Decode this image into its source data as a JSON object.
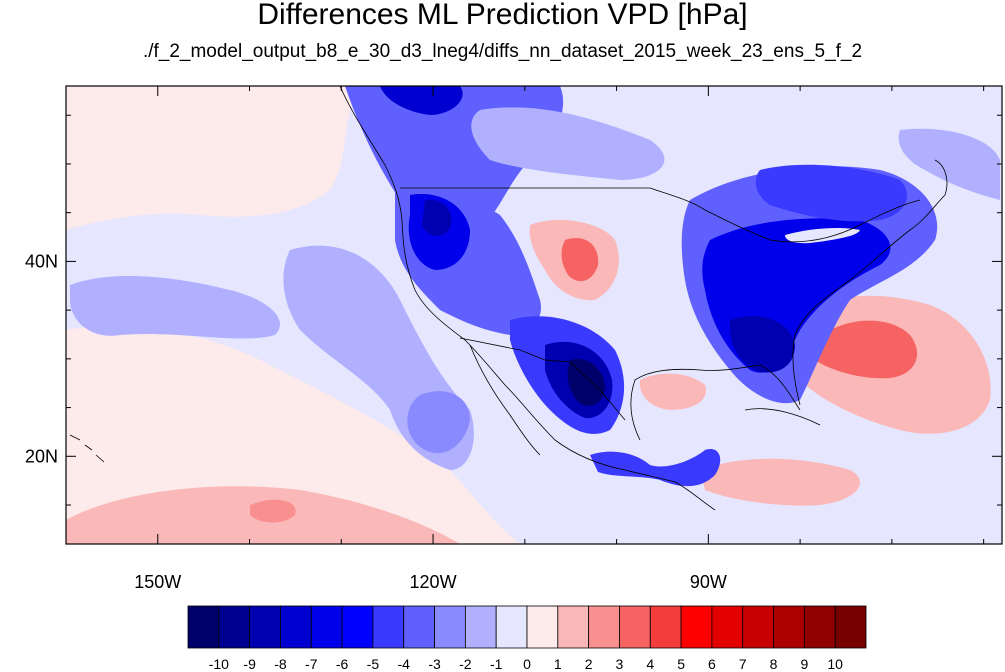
{
  "title": "Differences ML Prediction VPD [hPa]",
  "subtitle": "./f_2_model_output_b8_e_30_d3_lneg4/diffs_nn_dataset_2015_week_23_ens_5_f_2",
  "map": {
    "lon_range": [
      -160,
      -58
    ],
    "lat_range": [
      11,
      58
    ],
    "x_ticks": [
      {
        "lon": -150,
        "label": "150W"
      },
      {
        "lon": -120,
        "label": "120W"
      },
      {
        "lon": -90,
        "label": "90W"
      }
    ],
    "y_ticks": [
      {
        "lat": 40,
        "label": "40N"
      },
      {
        "lat": 20,
        "label": "20N"
      }
    ],
    "minor_lon_step": 10,
    "minor_lat_step": 5
  },
  "colorbar": {
    "colors": [
      "#00006b",
      "#000090",
      "#0000b0",
      "#0000d0",
      "#0000ea",
      "#0000ff",
      "#3a3aff",
      "#6060ff",
      "#8a8aff",
      "#b0b0ff",
      "#e6e6ff",
      "#fdeaea",
      "#fbb8b8",
      "#f99090",
      "#f56363",
      "#f33c3c",
      "#ff0000",
      "#e30000",
      "#c80000",
      "#ac0000",
      "#910000",
      "#760000"
    ],
    "labels": [
      "-10",
      "-9",
      "-8",
      "-7",
      "-6",
      "-5",
      "-4",
      "-3",
      "-2",
      "-1",
      "0",
      "1",
      "2",
      "3",
      "4",
      "5",
      "6",
      "7",
      "8",
      "9",
      "10"
    ]
  }
}
